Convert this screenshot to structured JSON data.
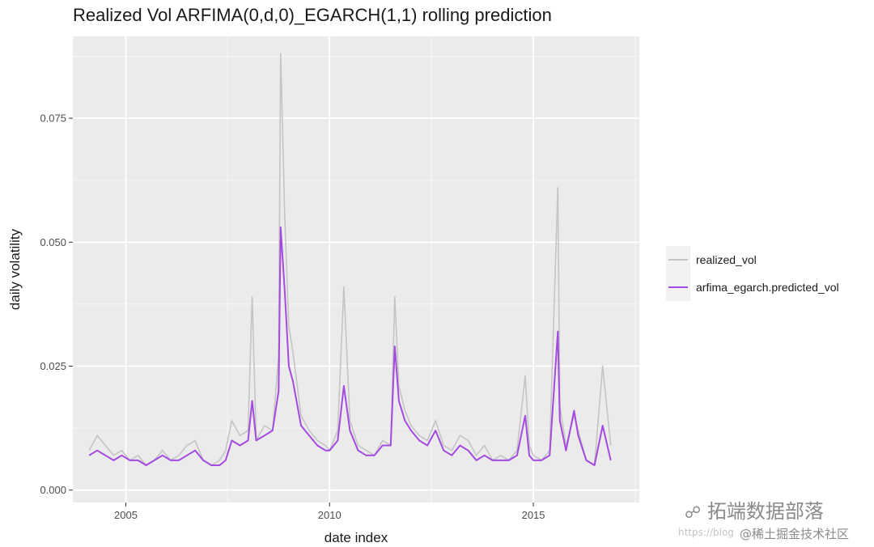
{
  "chart_data": {
    "type": "line",
    "title": "Realized Vol ARFIMA(0,d,0)_EGARCH(1,1) rolling prediction",
    "xlabel": "date index",
    "ylabel": "daily volatility",
    "xlim": [
      2003.7,
      2017.6
    ],
    "ylim": [
      -0.0025,
      0.0915
    ],
    "x_ticks": [
      2005,
      2010,
      2015
    ],
    "x_tick_labels": [
      "2005",
      "2010",
      "2015"
    ],
    "y_ticks": [
      0,
      0.025,
      0.05,
      0.075
    ],
    "y_tick_labels": [
      "0.000",
      "0.025",
      "0.050",
      "0.075"
    ],
    "grid": true,
    "legend_position": "right",
    "x": [
      2004.1,
      2004.3,
      2004.5,
      2004.7,
      2004.9,
      2005.1,
      2005.3,
      2005.5,
      2005.7,
      2005.9,
      2006.1,
      2006.3,
      2006.5,
      2006.7,
      2006.9,
      2007.1,
      2007.3,
      2007.45,
      2007.6,
      2007.8,
      2008.0,
      2008.1,
      2008.2,
      2008.4,
      2008.6,
      2008.75,
      2008.8,
      2008.9,
      2009.0,
      2009.1,
      2009.3,
      2009.5,
      2009.7,
      2009.9,
      2010.0,
      2010.2,
      2010.35,
      2010.5,
      2010.7,
      2010.9,
      2011.1,
      2011.3,
      2011.5,
      2011.6,
      2011.7,
      2011.85,
      2012.0,
      2012.2,
      2012.4,
      2012.6,
      2012.8,
      2013.0,
      2013.2,
      2013.4,
      2013.6,
      2013.8,
      2014.0,
      2014.2,
      2014.4,
      2014.6,
      2014.8,
      2014.9,
      2015.0,
      2015.2,
      2015.4,
      2015.6,
      2015.65,
      2015.8,
      2016.0,
      2016.1,
      2016.3,
      2016.5,
      2016.7,
      2016.9
    ],
    "series": [
      {
        "name": "realized_vol",
        "color": "#c4c4c4",
        "values": [
          0.008,
          0.011,
          0.009,
          0.007,
          0.008,
          0.006,
          0.007,
          0.005,
          0.006,
          0.008,
          0.006,
          0.007,
          0.009,
          0.01,
          0.006,
          0.005,
          0.006,
          0.008,
          0.014,
          0.011,
          0.012,
          0.039,
          0.01,
          0.013,
          0.012,
          0.027,
          0.088,
          0.055,
          0.033,
          0.028,
          0.015,
          0.012,
          0.01,
          0.009,
          0.008,
          0.012,
          0.041,
          0.014,
          0.009,
          0.008,
          0.007,
          0.01,
          0.009,
          0.039,
          0.021,
          0.016,
          0.013,
          0.011,
          0.01,
          0.014,
          0.009,
          0.008,
          0.011,
          0.01,
          0.007,
          0.009,
          0.006,
          0.007,
          0.006,
          0.008,
          0.023,
          0.009,
          0.007,
          0.006,
          0.008,
          0.061,
          0.017,
          0.009,
          0.015,
          0.012,
          0.006,
          0.005,
          0.025,
          0.009
        ]
      },
      {
        "name": "arfima_egarch.predicted_vol",
        "color": "#a34ae0",
        "values": [
          0.007,
          0.008,
          0.007,
          0.006,
          0.007,
          0.006,
          0.006,
          0.005,
          0.006,
          0.007,
          0.006,
          0.006,
          0.007,
          0.008,
          0.006,
          0.005,
          0.005,
          0.006,
          0.01,
          0.009,
          0.01,
          0.018,
          0.01,
          0.011,
          0.012,
          0.02,
          0.053,
          0.04,
          0.025,
          0.022,
          0.013,
          0.011,
          0.009,
          0.008,
          0.008,
          0.01,
          0.021,
          0.012,
          0.008,
          0.007,
          0.007,
          0.009,
          0.009,
          0.029,
          0.018,
          0.014,
          0.012,
          0.01,
          0.009,
          0.012,
          0.008,
          0.007,
          0.009,
          0.008,
          0.006,
          0.007,
          0.006,
          0.006,
          0.006,
          0.007,
          0.015,
          0.007,
          0.006,
          0.006,
          0.007,
          0.032,
          0.014,
          0.008,
          0.016,
          0.011,
          0.006,
          0.005,
          0.013,
          0.006
        ]
      }
    ]
  },
  "watermark": {
    "brand_text": "拓端数据部落",
    "url_text": "https://blog",
    "community_text": "@稀土掘金技术社区"
  }
}
